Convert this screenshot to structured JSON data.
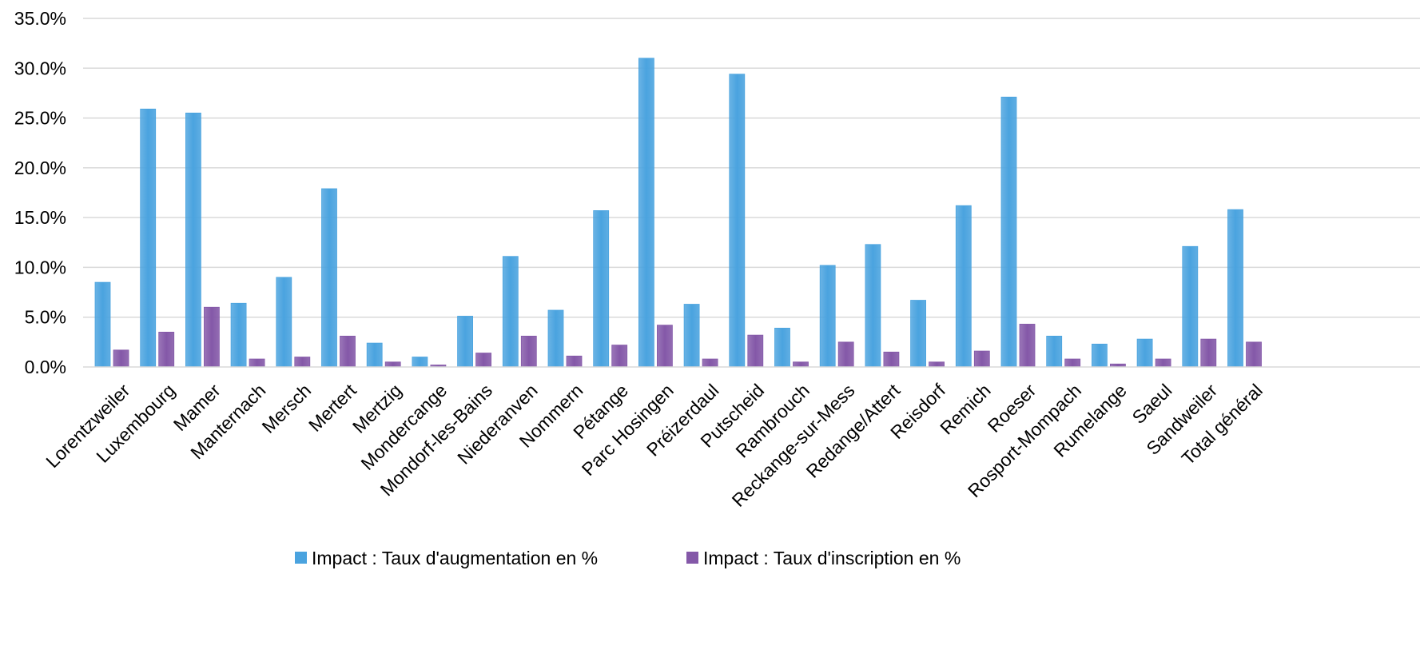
{
  "chart_data": {
    "type": "bar",
    "categories": [
      "Lorentzweiler",
      "Luxembourg",
      "Mamer",
      "Manternach",
      "Mersch",
      "Mertert",
      "Mertzig",
      "Mondercange",
      "Mondorf-les-Bains",
      "Niederanven",
      "Nommern",
      "Pétange",
      "Parc Hosingen",
      "Préizerdaul",
      "Putscheid",
      "Rambrouch",
      "Reckange-sur-Mess",
      "Redange/Attert",
      "Reisdorf",
      "Remich",
      "Roeser",
      "Rosport-Mompach",
      "Rumelange",
      "Saeul",
      "Sandweiler",
      "Total général"
    ],
    "series": [
      {
        "name": "Impact : Taux d'augmentation en %",
        "color": "#4aa3df",
        "values": [
          8.5,
          25.9,
          25.5,
          6.4,
          9.0,
          17.9,
          2.4,
          1.0,
          5.1,
          11.1,
          5.7,
          15.7,
          31.0,
          6.3,
          29.4,
          3.9,
          10.2,
          12.3,
          6.7,
          16.2,
          27.1,
          3.1,
          2.3,
          2.8,
          12.1,
          15.8
        ]
      },
      {
        "name": "Impact : Taux d'inscription en %",
        "color": "#8458a8",
        "values": [
          1.7,
          3.5,
          6.0,
          0.8,
          1.0,
          3.1,
          0.5,
          0.2,
          1.4,
          3.1,
          1.1,
          2.2,
          4.2,
          0.8,
          3.2,
          0.5,
          2.5,
          1.5,
          0.5,
          1.6,
          4.3,
          0.8,
          0.3,
          0.8,
          2.8,
          2.5
        ]
      }
    ],
    "y_ticks": [
      "0.0%",
      "5.0%",
      "10.0%",
      "15.0%",
      "20.0%",
      "25.0%",
      "30.0%",
      "35.0%"
    ],
    "ylim": [
      0,
      35
    ],
    "grid": true,
    "legend_position": "bottom"
  }
}
